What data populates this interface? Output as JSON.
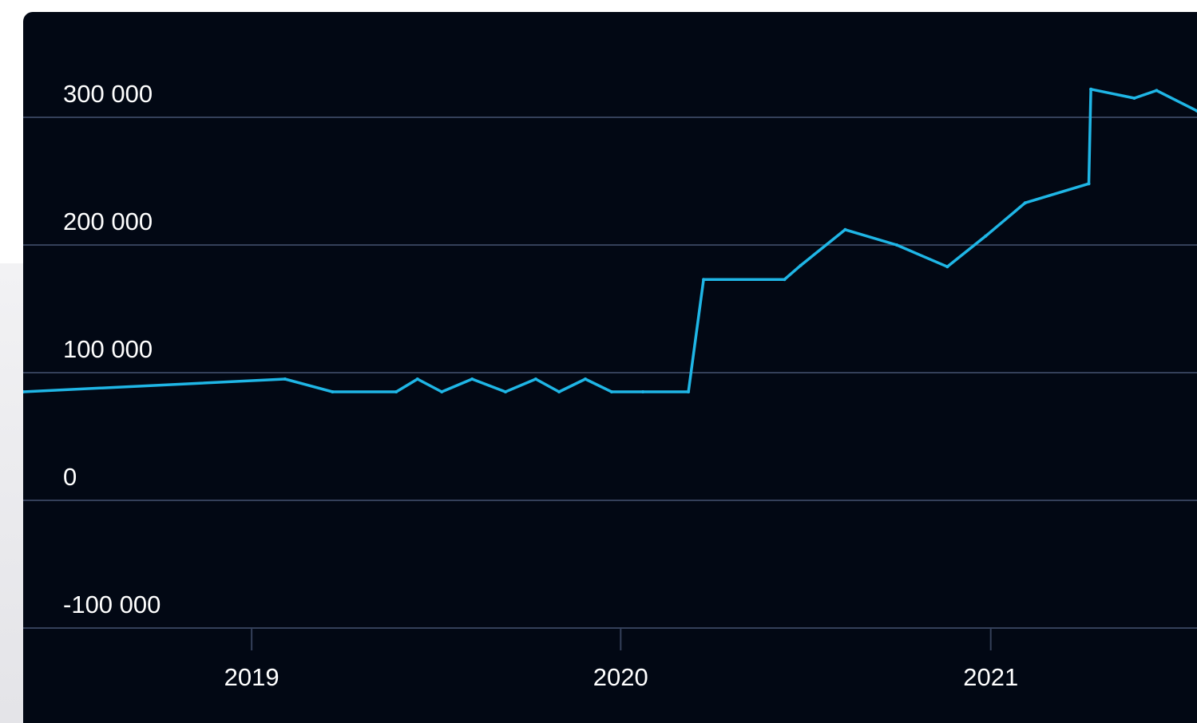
{
  "colors": {
    "background": "#020814",
    "grid": "#34405a",
    "series": "#1fb6e6",
    "text": "#ffffff"
  },
  "chart_data": {
    "type": "line",
    "title": "",
    "xlabel": "",
    "ylabel": "",
    "ylim": [
      -100000,
      300000
    ],
    "xlim": [
      "2018-05-20",
      "2021-07-24"
    ],
    "grid": true,
    "legend": "none",
    "y_ticks": [
      {
        "value": 300000,
        "label": "300 000"
      },
      {
        "value": 200000,
        "label": "200 000"
      },
      {
        "value": 100000,
        "label": "100 000"
      },
      {
        "value": 0,
        "label": "0"
      },
      {
        "value": -100000,
        "label": "-100 000"
      }
    ],
    "x_ticks": [
      {
        "value": "2019-01-01",
        "label": "2019"
      },
      {
        "value": "2020-01-01",
        "label": "2020"
      },
      {
        "value": "2021-01-01",
        "label": "2021"
      }
    ],
    "series": [
      {
        "x": [
          "2018-05-20",
          "2019-02-03",
          "2019-03-22",
          "2019-05-24",
          "2019-06-14",
          "2019-07-08",
          "2019-08-07",
          "2019-09-09",
          "2019-10-09",
          "2019-11-01",
          "2019-11-27",
          "2019-12-23",
          "2020-01-23",
          "2020-03-08",
          "2020-03-23",
          "2020-06-11",
          "2020-06-27",
          "2020-08-10",
          "2020-09-30",
          "2020-11-19",
          "2020-12-27",
          "2021-02-04",
          "2021-04-08",
          "2021-04-10",
          "2021-05-23",
          "2021-06-14",
          "2021-07-24"
        ],
        "values": [
          85000,
          95000,
          85000,
          85000,
          95000,
          85000,
          95000,
          85000,
          95000,
          85000,
          95000,
          85000,
          85000,
          85000,
          173000,
          173000,
          184000,
          212000,
          200000,
          183000,
          207000,
          233000,
          248000,
          322000,
          315000,
          321000,
          305000
        ]
      }
    ]
  }
}
